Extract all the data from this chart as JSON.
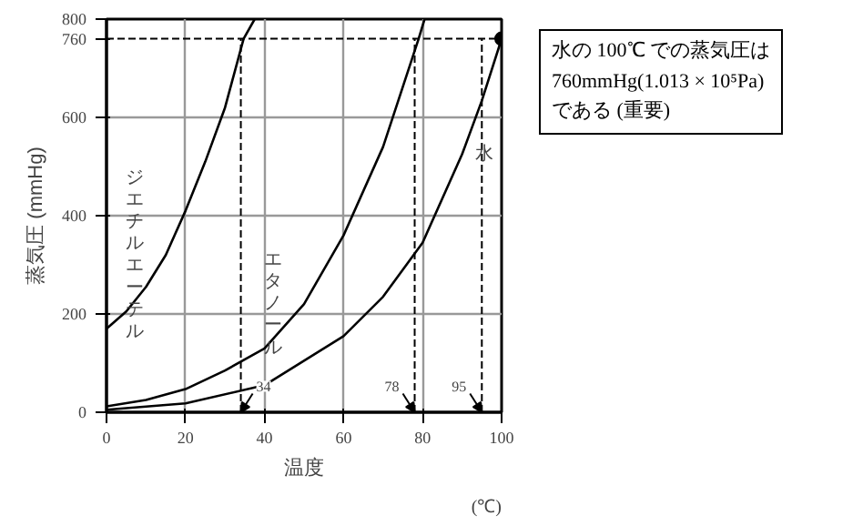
{
  "chart_data": {
    "type": "line",
    "xlabel": "温度",
    "ylabel": "蒸気圧 (mmHg)",
    "x": [
      0,
      5,
      10,
      15,
      20,
      25,
      30,
      34.7,
      37.5
    ],
    "series": [
      {
        "color": "#000000",
        "values": [
          170,
          205,
          255,
          320,
          410,
          510,
          620,
          760,
          800
        ]
      },
      {
        "color": "#000000",
        "x": [
          0,
          10,
          20,
          30,
          40,
          50,
          60,
          70,
          79,
          80.5
        ],
        "values": [
          12,
          25,
          47,
          85,
          130,
          220,
          360,
          540,
          760,
          800
        ]
      },
      {
        "color": "#000000",
        "x": [
          0,
          20,
          40,
          60,
          70,
          80,
          90,
          95,
          100
        ],
        "values": [
          5,
          18,
          55,
          155,
          235,
          345,
          525,
          634,
          760
        ]
      },
      {
        "type": "scatter",
        "marker": "circle",
        "color": "#000000",
        "x": [
          100
        ],
        "values": [
          760
        ]
      }
    ],
    "xlim": [
      0,
      100
    ],
    "ylim": [
      0,
      800
    ],
    "xticks": [
      0,
      20,
      40,
      60,
      80,
      100
    ],
    "yticks": [
      0,
      200,
      400,
      600,
      760,
      800
    ],
    "grid": true,
    "line_style": "solid",
    "ref_lines": [
      {
        "axis": "y",
        "value": 760,
        "line_style": "dashed"
      },
      {
        "axis": "x",
        "value": 34,
        "label": "34",
        "line_style": "dashed"
      },
      {
        "axis": "x",
        "value": 78,
        "label": "78",
        "line_style": "dashed"
      },
      {
        "axis": "x",
        "value": 95,
        "label": "95",
        "line_style": "dashed"
      }
    ],
    "annotations": [
      {
        "text": "ジエチルエーテル",
        "x": 15,
        "y": 320
      },
      {
        "text": "エタノール",
        "x": 50,
        "y": 220
      },
      {
        "text": "水",
        "x": 90,
        "y": 525
      },
      {
        "text": "水の 100℃ での蒸気圧は\n760mmHg(1.013 × 10⁵Pa)\nである (重要)",
        "x": 100,
        "y": 760
      },
      "(℃)"
    ]
  }
}
